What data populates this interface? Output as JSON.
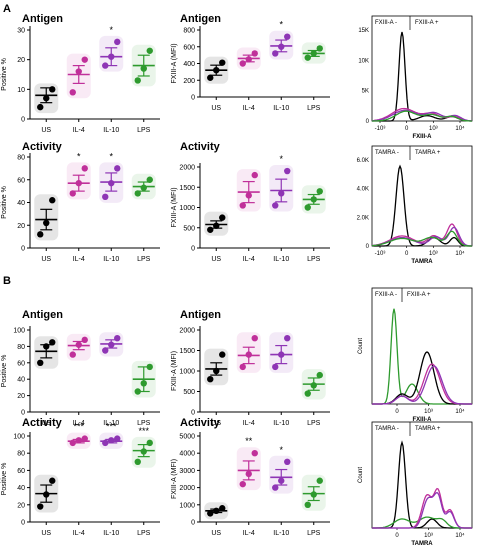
{
  "panels": [
    {
      "label": "A"
    },
    {
      "label": "B"
    }
  ],
  "chart_data": [
    {
      "id": "a-ag-pct",
      "type": "scatter",
      "title": "Antigen",
      "ylabel": "Positive %",
      "ylim": [
        0,
        30
      ],
      "yticks": [
        0,
        10,
        20,
        30
      ],
      "categories": [
        "US",
        "IL-4",
        "IL-10",
        "LPS"
      ],
      "colors": [
        "#000000",
        "#c0309a",
        "#8e35b5",
        "#2e9a2e"
      ],
      "points": [
        [
          4,
          7,
          10
        ],
        [
          9,
          16,
          20
        ],
        [
          18,
          21,
          26
        ],
        [
          13,
          17,
          23
        ]
      ],
      "mean": [
        8,
        15,
        21,
        18
      ],
      "sem": [
        2.5,
        3,
        3,
        3.5
      ],
      "sig": [
        "",
        "",
        "*",
        ""
      ]
    },
    {
      "id": "a-ag-mfi",
      "type": "scatter",
      "title": "Antigen",
      "ylabel": "FXIII-A (MFI)",
      "ylim": [
        0,
        800
      ],
      "yticks": [
        0,
        200,
        400,
        600,
        800
      ],
      "categories": [
        "US",
        "IL-4",
        "IL-10",
        "LPS"
      ],
      "colors": [
        "#000000",
        "#c0309a",
        "#8e35b5",
        "#2e9a2e"
      ],
      "points": [
        [
          230,
          320,
          410
        ],
        [
          400,
          450,
          520
        ],
        [
          520,
          600,
          720
        ],
        [
          470,
          520,
          580
        ]
      ],
      "mean": [
        320,
        460,
        610,
        520
      ],
      "sem": [
        60,
        40,
        70,
        35
      ],
      "sig": [
        "",
        "",
        "*",
        ""
      ]
    },
    {
      "id": "a-ac-pct",
      "type": "scatter",
      "title": "Activity",
      "ylabel": "Positive %",
      "ylim": [
        0,
        80
      ],
      "yticks": [
        0,
        20,
        40,
        60,
        80
      ],
      "categories": [
        "US",
        "IL-4",
        "IL-10",
        "LPS"
      ],
      "colors": [
        "#000000",
        "#c0309a",
        "#8e35b5",
        "#2e9a2e"
      ],
      "points": [
        [
          12,
          22,
          42
        ],
        [
          48,
          57,
          70
        ],
        [
          45,
          57,
          70
        ],
        [
          48,
          53,
          60
        ]
      ],
      "mean": [
        25,
        57,
        58,
        54
      ],
      "sem": [
        9,
        7,
        8,
        4
      ],
      "sig": [
        "",
        "*",
        "*",
        ""
      ]
    },
    {
      "id": "a-ac-mfi",
      "type": "scatter",
      "title": "Activity",
      "ylabel": "FXIII-A (MFI)",
      "ylim": [
        0,
        2000
      ],
      "yticks": [
        0,
        500,
        1000,
        1500,
        2000
      ],
      "categories": [
        "US",
        "IL-4",
        "IL-10",
        "LPS"
      ],
      "colors": [
        "#000000",
        "#c0309a",
        "#8e35b5",
        "#2e9a2e"
      ],
      "points": [
        [
          450,
          550,
          750
        ],
        [
          1050,
          1300,
          1800
        ],
        [
          1050,
          1350,
          1900
        ],
        [
          1000,
          1200,
          1400
        ]
      ],
      "mean": [
        580,
        1380,
        1420,
        1200
      ],
      "sem": [
        90,
        260,
        280,
        120
      ],
      "sig": [
        "",
        "",
        "*",
        ""
      ]
    },
    {
      "id": "b-ag-pct",
      "type": "scatter",
      "title": "Antigen",
      "ylabel": "Positive %",
      "ylim": [
        0,
        100
      ],
      "yticks": [
        0,
        20,
        40,
        60,
        80,
        100
      ],
      "categories": [
        "US",
        "IL-4",
        "IL-10",
        "LPS"
      ],
      "colors": [
        "#000000",
        "#c0309a",
        "#8e35b5",
        "#2e9a2e"
      ],
      "points": [
        [
          60,
          80,
          85
        ],
        [
          70,
          82,
          88
        ],
        [
          75,
          82,
          90
        ],
        [
          25,
          35,
          55
        ]
      ],
      "mean": [
        74,
        81,
        83,
        40
      ],
      "sem": [
        8,
        5,
        5,
        15
      ],
      "sig": [
        "",
        "",
        "",
        ""
      ]
    },
    {
      "id": "b-ag-mfi",
      "type": "scatter",
      "title": "Antigen",
      "ylabel": "FXIII-A (MFI)",
      "ylim": [
        0,
        2000
      ],
      "yticks": [
        0,
        500,
        1000,
        1500,
        2000
      ],
      "categories": [
        "US",
        "IL-4",
        "IL-10",
        "LPS"
      ],
      "colors": [
        "#000000",
        "#c0309a",
        "#8e35b5",
        "#2e9a2e"
      ],
      "points": [
        [
          800,
          1000,
          1400
        ],
        [
          1100,
          1400,
          1800
        ],
        [
          1100,
          1400,
          1800
        ],
        [
          450,
          650,
          900
        ]
      ],
      "mean": [
        1050,
        1380,
        1400,
        680
      ],
      "sem": [
        150,
        200,
        220,
        150
      ],
      "sig": [
        "",
        "",
        "",
        ""
      ]
    },
    {
      "id": "b-ac-pct",
      "type": "scatter",
      "title": "Activity",
      "ylabel": "Positive %",
      "ylim": [
        0,
        100
      ],
      "yticks": [
        0,
        20,
        40,
        60,
        80,
        100
      ],
      "categories": [
        "US",
        "IL-4",
        "IL-10",
        "LPS"
      ],
      "colors": [
        "#000000",
        "#c0309a",
        "#8e35b5",
        "#2e9a2e"
      ],
      "points": [
        [
          18,
          32,
          48
        ],
        [
          92,
          95,
          97
        ],
        [
          92,
          95,
          97
        ],
        [
          70,
          82,
          92
        ]
      ],
      "mean": [
        33,
        94,
        94,
        83
      ],
      "sem": [
        10,
        2,
        2,
        7
      ],
      "sig": [
        "",
        "***",
        "***",
        "***"
      ]
    },
    {
      "id": "b-ac-mfi",
      "type": "scatter",
      "title": "Activity",
      "ylabel": "FXIII-A (MFI)",
      "ylim": [
        0,
        5000
      ],
      "yticks": [
        0,
        1000,
        2000,
        3000,
        4000,
        5000
      ],
      "categories": [
        "US",
        "IL-4",
        "IL-10",
        "LPS"
      ],
      "colors": [
        "#000000",
        "#c0309a",
        "#8e35b5",
        "#2e9a2e"
      ],
      "points": [
        [
          500,
          650,
          800
        ],
        [
          2200,
          2800,
          4000
        ],
        [
          2000,
          2400,
          3500
        ],
        [
          1000,
          1600,
          2400
        ]
      ],
      "mean": [
        650,
        3000,
        2600,
        1650
      ],
      "sem": [
        100,
        550,
        450,
        400
      ],
      "sig": [
        "",
        "**",
        "*",
        ""
      ]
    },
    {
      "id": "a-hist-fxiii",
      "type": "histogram",
      "gate_left": "FXIII-A -",
      "gate_right": "FXIII-A +",
      "xlabel": "FXIII-A",
      "ylabel": "",
      "yticks": [
        "0",
        "5K",
        "10K",
        "15K"
      ],
      "xticks": [
        "-10³",
        "0",
        "10³",
        "10⁴"
      ]
    },
    {
      "id": "a-hist-tamra",
      "type": "histogram",
      "gate_left": "TAMRA -",
      "gate_right": "TAMRA +",
      "xlabel": "TAMRA",
      "ylabel": "",
      "yticks": [
        "0",
        "2.0K",
        "4.0K",
        "6.0K"
      ],
      "xticks": [
        "-10³",
        "0",
        "10³",
        "10⁴"
      ]
    },
    {
      "id": "b-hist-fxiii",
      "type": "histogram",
      "gate_left": "FXIII-A -",
      "gate_right": "FXIII-A +",
      "xlabel": "FXIII-A",
      "ylabel": "Count",
      "yticks": [],
      "xticks": [
        "0",
        "10³",
        "10⁴"
      ]
    },
    {
      "id": "b-hist-tamra",
      "type": "histogram",
      "gate_left": "TAMRA -",
      "gate_right": "TAMRA +",
      "xlabel": "TAMRA",
      "ylabel": "Count",
      "yticks": [],
      "xticks": [
        "0",
        "10³",
        "10⁴"
      ]
    }
  ]
}
